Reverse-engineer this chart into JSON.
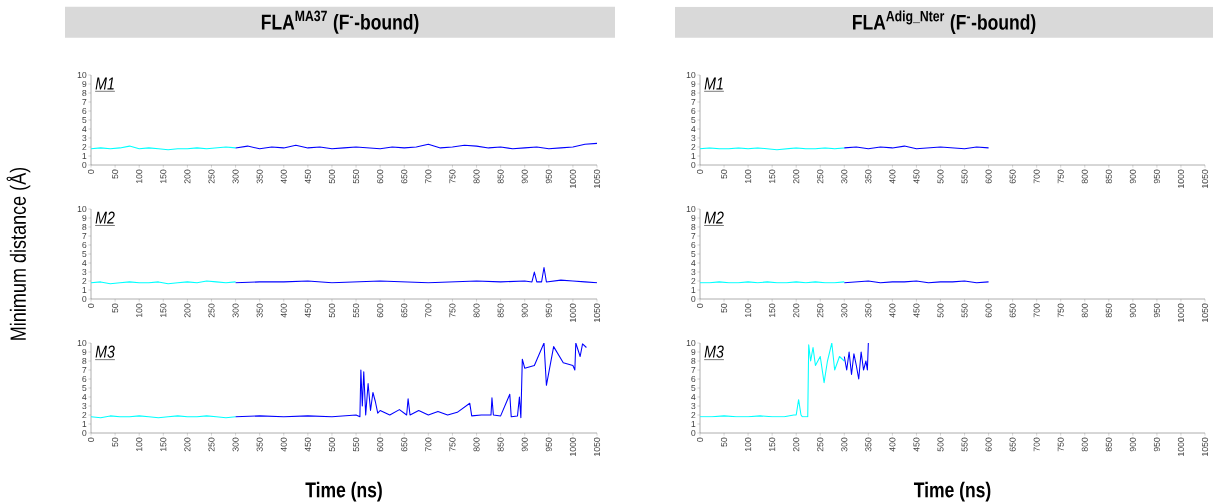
{
  "chart_data": [
    {
      "type": "line",
      "title": "FLA$^{MA37}$ (F$^{-}$-bound)",
      "annotations": [
        "M1"
      ],
      "xlim": [
        0,
        1050
      ],
      "xticks": [
        0,
        50,
        100,
        150,
        200,
        250,
        300,
        350,
        400,
        450,
        500,
        550,
        600,
        650,
        700,
        750,
        800,
        850,
        900,
        950,
        1000,
        1050
      ],
      "ylim": [
        0,
        10
      ],
      "yticks": [
        0,
        1,
        2,
        3,
        4,
        5,
        6,
        7,
        8,
        9,
        10
      ],
      "series": [
        {
          "color": "#00ffff",
          "x": [
            0,
            20,
            40,
            60,
            80,
            100,
            120,
            140,
            160,
            180,
            200,
            220,
            240,
            260,
            280,
            300
          ],
          "values": [
            1.8,
            1.9,
            1.8,
            1.9,
            2.1,
            1.8,
            1.9,
            1.8,
            1.7,
            1.8,
            1.8,
            1.9,
            1.8,
            1.9,
            2.0,
            1.9
          ]
        },
        {
          "color": "#0000ff",
          "x": [
            300,
            325,
            350,
            375,
            400,
            425,
            450,
            475,
            500,
            525,
            550,
            575,
            600,
            625,
            650,
            675,
            700,
            725,
            750,
            775,
            800,
            825,
            850,
            875,
            900,
            925,
            950,
            975,
            1000,
            1025,
            1050
          ],
          "values": [
            1.9,
            2.1,
            1.8,
            2.0,
            1.9,
            2.2,
            1.9,
            2.0,
            1.8,
            1.9,
            2.0,
            1.9,
            1.8,
            2.0,
            1.9,
            2.0,
            2.3,
            1.9,
            2.0,
            2.2,
            2.1,
            1.9,
            2.0,
            1.8,
            1.9,
            2.0,
            1.8,
            1.9,
            2.0,
            2.3,
            2.4
          ]
        }
      ]
    },
    {
      "type": "line",
      "title": "FLA$^{Adig_Nter}$ (F$^{-}$-bound)",
      "annotations": [
        "M1"
      ],
      "xlim": [
        0,
        1050
      ],
      "xticks": [
        0,
        50,
        100,
        150,
        200,
        250,
        300,
        350,
        400,
        450,
        500,
        550,
        600,
        650,
        700,
        750,
        800,
        850,
        900,
        950,
        1000,
        1050
      ],
      "ylim": [
        0,
        10
      ],
      "yticks": [
        0,
        1,
        2,
        3,
        4,
        5,
        6,
        7,
        8,
        9,
        10
      ],
      "series": [
        {
          "color": "#00ffff",
          "x": [
            0,
            20,
            40,
            60,
            80,
            100,
            120,
            140,
            160,
            180,
            200,
            220,
            240,
            260,
            280,
            300
          ],
          "values": [
            1.8,
            1.9,
            1.8,
            1.8,
            1.9,
            1.8,
            1.9,
            1.8,
            1.7,
            1.8,
            1.9,
            1.8,
            1.8,
            1.9,
            1.8,
            1.9
          ]
        },
        {
          "color": "#0000ff",
          "x": [
            300,
            325,
            350,
            375,
            400,
            425,
            450,
            475,
            500,
            525,
            550,
            575,
            600
          ],
          "values": [
            1.9,
            2.0,
            1.8,
            2.0,
            1.9,
            2.1,
            1.8,
            1.9,
            2.0,
            1.9,
            1.8,
            2.0,
            1.9
          ]
        }
      ]
    },
    {
      "type": "line",
      "ylabel": "Minimum distance (Å)",
      "annotations": [
        "M2"
      ],
      "xlim": [
        0,
        1050
      ],
      "xticks": [
        0,
        50,
        100,
        150,
        200,
        250,
        300,
        350,
        400,
        450,
        500,
        550,
        600,
        650,
        700,
        750,
        800,
        850,
        900,
        950,
        1000,
        1050
      ],
      "ylim": [
        0,
        10
      ],
      "yticks": [
        0,
        1,
        2,
        3,
        4,
        5,
        6,
        7,
        8,
        9,
        10
      ],
      "series": [
        {
          "color": "#00ffff",
          "x": [
            0,
            20,
            40,
            60,
            80,
            100,
            120,
            140,
            160,
            180,
            200,
            220,
            240,
            260,
            280,
            300
          ],
          "values": [
            1.8,
            1.9,
            1.7,
            1.8,
            1.9,
            1.8,
            1.8,
            1.9,
            1.7,
            1.8,
            1.9,
            1.8,
            2.0,
            1.9,
            1.8,
            1.9
          ]
        },
        {
          "color": "#0000ff",
          "x": [
            300,
            350,
            400,
            450,
            500,
            550,
            600,
            650,
            700,
            750,
            800,
            850,
            900,
            915,
            920,
            925,
            935,
            940,
            945,
            975,
            1000,
            1025,
            1050
          ],
          "values": [
            1.8,
            1.9,
            1.9,
            2.0,
            1.8,
            1.9,
            2.0,
            1.9,
            1.8,
            1.9,
            2.0,
            1.9,
            2.0,
            1.9,
            3.0,
            1.9,
            1.9,
            3.5,
            1.9,
            2.1,
            2.0,
            1.9,
            1.8
          ]
        }
      ]
    },
    {
      "type": "line",
      "annotations": [
        "M2"
      ],
      "xlim": [
        0,
        1050
      ],
      "xticks": [
        0,
        50,
        100,
        150,
        200,
        250,
        300,
        350,
        400,
        450,
        500,
        550,
        600,
        650,
        700,
        750,
        800,
        850,
        900,
        950,
        1000,
        1050
      ],
      "ylim": [
        0,
        10
      ],
      "yticks": [
        0,
        1,
        2,
        3,
        4,
        5,
        6,
        7,
        8,
        9,
        10
      ],
      "series": [
        {
          "color": "#00ffff",
          "x": [
            0,
            20,
            40,
            60,
            80,
            100,
            120,
            140,
            160,
            180,
            200,
            220,
            240,
            260,
            280,
            300
          ],
          "values": [
            1.8,
            1.8,
            1.9,
            1.8,
            1.8,
            1.9,
            1.8,
            1.9,
            1.8,
            1.8,
            1.9,
            1.8,
            1.9,
            1.8,
            1.8,
            1.9
          ]
        },
        {
          "color": "#0000ff",
          "x": [
            300,
            325,
            350,
            375,
            400,
            425,
            450,
            475,
            500,
            525,
            550,
            575,
            600
          ],
          "values": [
            1.8,
            1.9,
            2.0,
            1.8,
            1.9,
            1.9,
            2.0,
            1.8,
            1.9,
            1.9,
            2.0,
            1.8,
            1.9
          ]
        }
      ]
    },
    {
      "type": "line",
      "xlabel": "Time (ns)",
      "annotations": [
        "M3"
      ],
      "xlim": [
        0,
        1050
      ],
      "xticks": [
        0,
        50,
        100,
        150,
        200,
        250,
        300,
        350,
        400,
        450,
        500,
        550,
        600,
        650,
        700,
        750,
        800,
        850,
        900,
        950,
        1000,
        1050
      ],
      "ylim": [
        0,
        10
      ],
      "yticks": [
        0,
        1,
        2,
        3,
        4,
        5,
        6,
        7,
        8,
        9,
        10
      ],
      "series": [
        {
          "color": "#00ffff",
          "x": [
            0,
            20,
            40,
            60,
            80,
            100,
            120,
            140,
            160,
            180,
            200,
            220,
            240,
            260,
            280,
            300
          ],
          "values": [
            1.8,
            1.7,
            1.9,
            1.8,
            1.8,
            1.9,
            1.8,
            1.7,
            1.8,
            1.9,
            1.8,
            1.8,
            1.9,
            1.8,
            1.7,
            1.8
          ]
        },
        {
          "color": "#0000ff",
          "x": [
            300,
            350,
            400,
            450,
            500,
            550,
            558,
            560,
            563,
            566,
            570,
            575,
            580,
            585,
            590,
            595,
            600,
            620,
            640,
            655,
            658,
            662,
            680,
            700,
            720,
            740,
            760,
            786,
            790,
            810,
            830,
            832,
            835,
            850,
            869,
            872,
            885,
            889,
            892,
            895,
            900,
            920,
            940,
            945,
            960,
            980,
            1000,
            1004,
            1006,
            1015,
            1020,
            1028
          ],
          "values": [
            1.8,
            1.9,
            1.8,
            1.9,
            1.8,
            2.0,
            1.8,
            7.0,
            3.0,
            6.8,
            2.0,
            5.5,
            2.5,
            4.5,
            3.5,
            2.2,
            2.5,
            2.0,
            2.6,
            2.0,
            3.8,
            2.0,
            2.5,
            2.0,
            2.4,
            2.0,
            2.3,
            3.3,
            1.9,
            2.0,
            2.0,
            3.9,
            2.0,
            1.9,
            4.3,
            1.8,
            1.9,
            4.0,
            1.7,
            8.2,
            7.2,
            7.5,
            10.0,
            5.3,
            9.6,
            7.8,
            7.5,
            7.0,
            10.0,
            8.5,
            9.9,
            9.5
          ]
        }
      ]
    },
    {
      "type": "line",
      "xlabel": "Time (ns)",
      "annotations": [
        "M3"
      ],
      "xlim": [
        0,
        1050
      ],
      "xticks": [
        0,
        50,
        100,
        150,
        200,
        250,
        300,
        350,
        400,
        450,
        500,
        550,
        600,
        650,
        700,
        750,
        800,
        850,
        900,
        950,
        1000,
        1050
      ],
      "ylim": [
        0,
        10
      ],
      "yticks": [
        0,
        1,
        2,
        3,
        4,
        5,
        6,
        7,
        8,
        9,
        10
      ],
      "series": [
        {
          "color": "#00ffff",
          "x": [
            0,
            25,
            50,
            75,
            100,
            125,
            150,
            175,
            195,
            200,
            205,
            210,
            213,
            220,
            224,
            226,
            230,
            235,
            240,
            250,
            258,
            265,
            274,
            280,
            290,
            300
          ],
          "values": [
            1.8,
            1.8,
            1.9,
            1.8,
            1.8,
            1.9,
            1.8,
            1.8,
            2.0,
            2.0,
            3.7,
            2.0,
            1.8,
            1.8,
            1.8,
            9.8,
            8.0,
            9.5,
            7.5,
            8.5,
            5.6,
            8.0,
            10.0,
            7.0,
            8.5,
            8.0
          ]
        },
        {
          "color": "#0000ff",
          "x": [
            300,
            305,
            310,
            315,
            320,
            325,
            330,
            335,
            340,
            345,
            348,
            350
          ],
          "values": [
            8.5,
            7.0,
            9.0,
            6.5,
            8.8,
            7.5,
            6.0,
            9.0,
            7.0,
            8.0,
            7.0,
            10.0
          ]
        }
      ]
    }
  ]
}
